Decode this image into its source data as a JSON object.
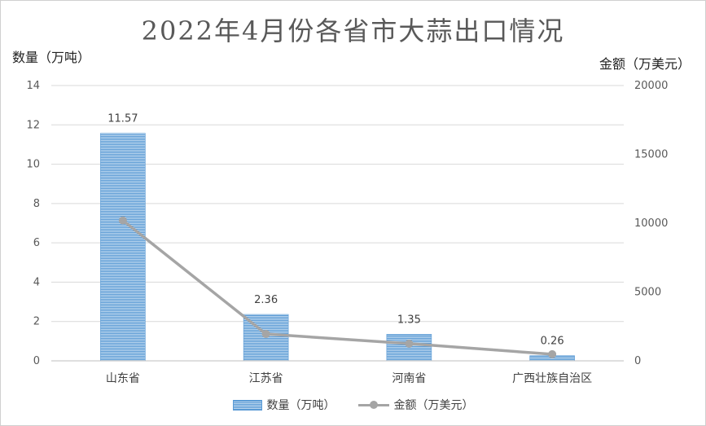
{
  "chart_data": {
    "type": "bar",
    "title": "2022年4月份各省市大蒜出口情况",
    "categories": [
      "山东省",
      "江苏省",
      "河南省",
      "广西壮族自治区"
    ],
    "ylabel": "数量（万吨）",
    "y2label": "金额（万美元）",
    "ylim": [
      0,
      14
    ],
    "y2lim": [
      0,
      20000
    ],
    "yticks": [
      "0",
      "2",
      "4",
      "6",
      "8",
      "10",
      "12",
      "14"
    ],
    "y2ticks": [
      "0",
      "5000",
      "10000",
      "15000",
      "20000"
    ],
    "grid": true,
    "legend_position": "bottom",
    "series": [
      {
        "name": "数量（万吨）",
        "type": "bar",
        "axis": "left",
        "color": "#5b9bd5",
        "values": [
          11.57,
          2.36,
          1.35,
          0.26
        ],
        "labels": [
          "11.57",
          "2.36",
          "1.35",
          "0.26"
        ]
      },
      {
        "name": "金额（万美元）",
        "type": "line",
        "axis": "right",
        "color": "#a5a5a5",
        "values": [
          10200,
          1950,
          1250,
          480
        ]
      }
    ]
  }
}
